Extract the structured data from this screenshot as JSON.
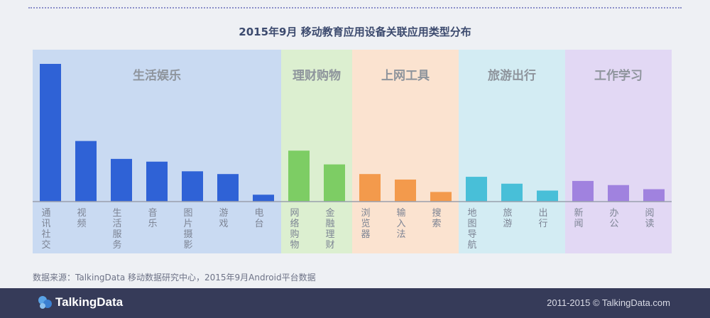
{
  "chart_data": {
    "type": "bar",
    "title": "2015年9月  移动教育应用设备关联应用类型分布",
    "xlabel": "",
    "ylabel": "",
    "ylim": [
      0,
      100
    ],
    "grid": false,
    "groups": [
      {
        "name": "生活娱乐",
        "color": "#2f62d6",
        "bg": "#c9daf2",
        "items": [
          {
            "label": "通讯社交",
            "value": 100
          },
          {
            "label": "视频",
            "value": 44
          },
          {
            "label": "生活服务",
            "value": 31
          },
          {
            "label": "音乐",
            "value": 29
          },
          {
            "label": "图片摄影",
            "value": 22
          },
          {
            "label": "游戏",
            "value": 20
          },
          {
            "label": "电台",
            "value": 5
          }
        ]
      },
      {
        "name": "理财购物",
        "color": "#7dcd64",
        "bg": "#dcefd0",
        "items": [
          {
            "label": "网络购物",
            "value": 37
          },
          {
            "label": "金融理财",
            "value": 27
          }
        ]
      },
      {
        "name": "上网工具",
        "color": "#f39a4c",
        "bg": "#fbe3d0",
        "items": [
          {
            "label": "浏览器",
            "value": 20
          },
          {
            "label": "输入法",
            "value": 16
          },
          {
            "label": "搜索",
            "value": 7
          }
        ]
      },
      {
        "name": "旅游出行",
        "color": "#48bfd8",
        "bg": "#d3ecf3",
        "items": [
          {
            "label": "地图导航",
            "value": 18
          },
          {
            "label": "旅游",
            "value": 13
          },
          {
            "label": "出行",
            "value": 8
          }
        ]
      },
      {
        "name": "工作学习",
        "color": "#a082df",
        "bg": "#e2d8f4",
        "items": [
          {
            "label": "新闻",
            "value": 15
          },
          {
            "label": "办公",
            "value": 12
          },
          {
            "label": "阅读",
            "value": 9
          }
        ]
      }
    ]
  },
  "source": "数据来源：TalkingData 移动数据研究中心，2015年9月Android平台数据",
  "footer": {
    "brand": "TalkingData",
    "copyright": "2011-2015 © TalkingData.com"
  }
}
